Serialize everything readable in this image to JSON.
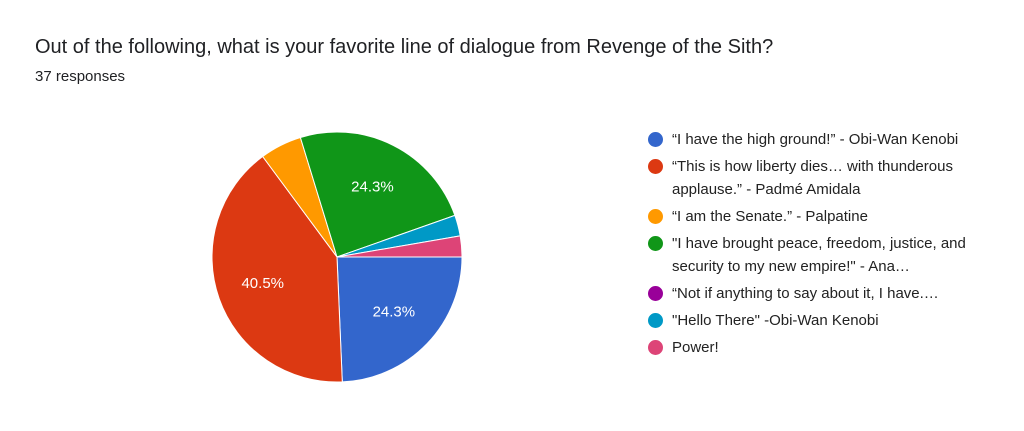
{
  "title": "Out of the following, what is your favorite line of dialogue from Revenge of the Sith?",
  "responses": "37 responses",
  "chart_data": {
    "type": "pie",
    "total": 37,
    "start_angle": "3 o'clock, clockwise",
    "legend_position": "right",
    "slices": [
      {
        "label": "“I have the high ground!” - Obi-Wan Kenobi",
        "value": 9,
        "percent_label": "24.3%",
        "color": "#3366cc"
      },
      {
        "label": "“This is how liberty dies… with thunderous applause.” - Padmé Amidala",
        "value": 15,
        "percent_label": "40.5%",
        "color": "#dc3912"
      },
      {
        "label": "“I am the Senate.” - Palpatine",
        "value": 2,
        "percent_label": "",
        "color": "#ff9900"
      },
      {
        "label": "\"I have brought peace, freedom, justice, and security to my new empire!\" - Ana…",
        "value": 9,
        "percent_label": "24.3%",
        "color": "#109618"
      },
      {
        "label": "“Not if anything to say about it, I have.…",
        "value": 0,
        "percent_label": "",
        "color": "#990099"
      },
      {
        "label": "\"Hello There\" -Obi-Wan Kenobi",
        "value": 1,
        "percent_label": "",
        "color": "#0099c6"
      },
      {
        "label": "Power!",
        "value": 1,
        "percent_label": "",
        "color": "#dd4477"
      }
    ]
  }
}
